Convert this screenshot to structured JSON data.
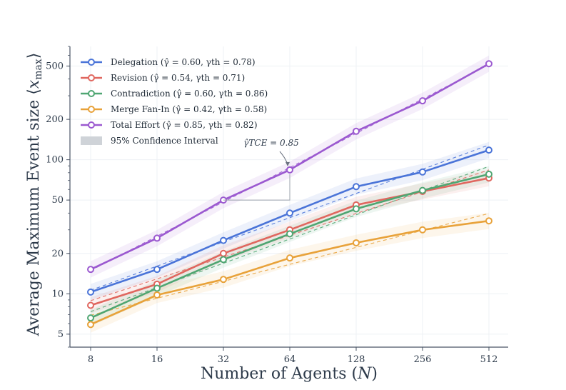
{
  "chart_data": {
    "type": "line",
    "xlabel": "Number of Agents (N)",
    "ylabel": "Average Maximum Event size ⟨x_max⟩",
    "x_scale": "log2",
    "y_scale": "log",
    "x": [
      8,
      16,
      32,
      64,
      128,
      256,
      512
    ],
    "x_tick_labels": [
      "8",
      "16",
      "32",
      "64",
      "128",
      "256",
      "512"
    ],
    "y_ticks": [
      5,
      10,
      20,
      50,
      100,
      200,
      500
    ],
    "y_tick_labels": [
      "5",
      "10",
      "20",
      "50",
      "100",
      "200",
      "500"
    ],
    "ylim": [
      4,
      700
    ],
    "grid": true,
    "legend_position": "top-left",
    "series": [
      {
        "name": "Delegation (γ̂ = 0.60, γth = 0.78)",
        "color": "#4a74d8",
        "values": [
          10.3,
          15.2,
          25,
          40,
          63,
          81,
          118
        ],
        "fit_exponent": 0.6
      },
      {
        "name": "Revision (γ̂ = 0.54, γth = 0.71)",
        "color": "#e0675f",
        "values": [
          8.2,
          11.8,
          20,
          30,
          46,
          58,
          73
        ],
        "fit_exponent": 0.54
      },
      {
        "name": "Contradiction (γ̂ = 0.60, γth = 0.86)",
        "color": "#4fa672",
        "values": [
          6.6,
          11,
          18,
          28,
          43,
          59,
          78
        ],
        "fit_exponent": 0.6
      },
      {
        "name": "Merge Fan-In (γ̂ = 0.42, γth = 0.58)",
        "color": "#e8a23a",
        "values": [
          5.9,
          9.8,
          12.8,
          18.5,
          24,
          30,
          35
        ],
        "fit_exponent": 0.42
      },
      {
        "name": "Total Effort (γ̂ = 0.85, γth = 0.82)",
        "color": "#9b59d0",
        "values": [
          15.2,
          26,
          50,
          84,
          163,
          275,
          520
        ],
        "fit_exponent": 0.85
      }
    ],
    "confidence_label": "95% Confidence Interval",
    "annotation": {
      "text": "γ̂TCE = 0.85",
      "target_series": "Total Effort",
      "target_x": 64
    }
  }
}
